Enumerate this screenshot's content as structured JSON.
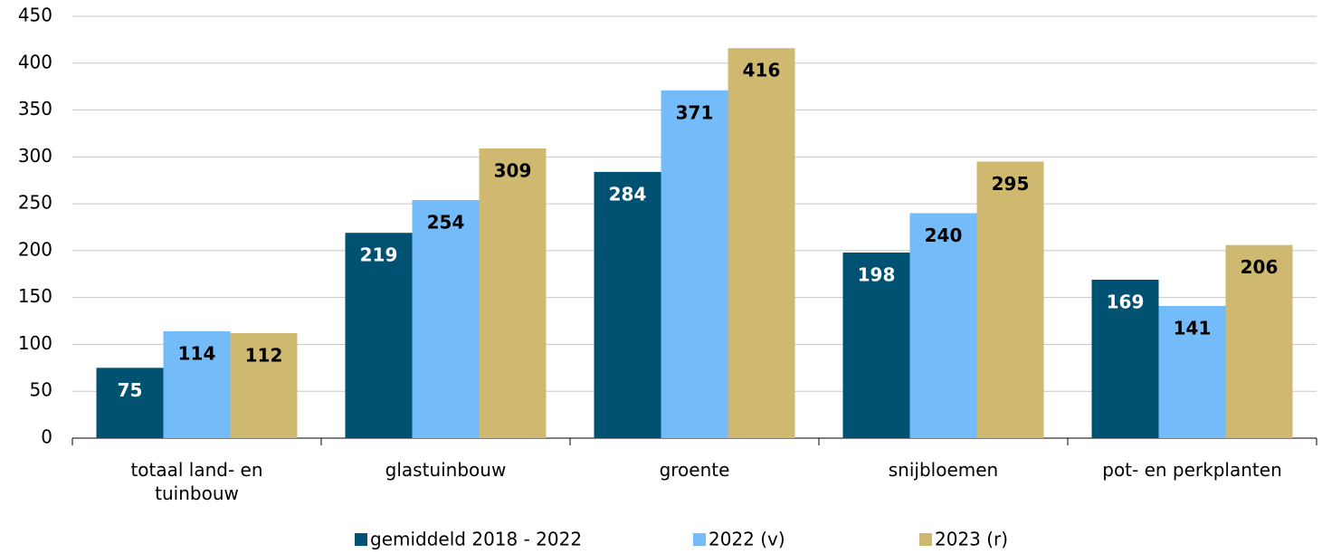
{
  "chart_data": {
    "type": "bar",
    "categories": [
      "totaal land- en tuinbouw",
      "glastuinbouw",
      "groente",
      "snijbloemen",
      "pot- en perkplanten"
    ],
    "series": [
      {
        "name": "gemiddeld 2018 - 2022",
        "color": "#005172",
        "values": [
          75,
          219,
          284,
          198,
          169
        ]
      },
      {
        "name": "2022 (v)",
        "color": "#74bbf9",
        "values": [
          114,
          254,
          371,
          240,
          141
        ]
      },
      {
        "name": "2023 (r)",
        "color": "#cfb971",
        "values": [
          112,
          309,
          416,
          295,
          206
        ]
      }
    ],
    "ylim": [
      0,
      450
    ],
    "yticks": [
      0,
      50,
      100,
      150,
      200,
      250,
      300,
      350,
      400,
      450
    ],
    "grid": true
  }
}
